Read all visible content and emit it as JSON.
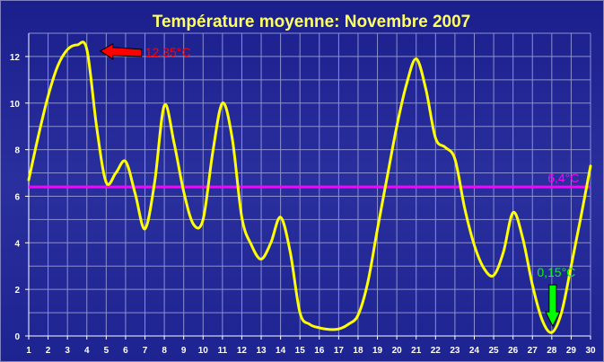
{
  "chart_data": {
    "type": "line",
    "title": "Température moyenne:  Novembre 2007",
    "xlabel": "",
    "ylabel": "",
    "xlim": [
      1,
      30
    ],
    "ylim": [
      0,
      13
    ],
    "x_ticks": [
      "1",
      "2",
      "3",
      "4",
      "5",
      "6",
      "7",
      "8",
      "9",
      "10",
      "11",
      "12",
      "13",
      "14",
      "15",
      "16",
      "17",
      "18",
      "19",
      "20",
      "21",
      "22",
      "23",
      "24",
      "25",
      "26",
      "27",
      "28",
      "29",
      "30"
    ],
    "y_ticks": [
      "0",
      "2",
      "4",
      "6",
      "8",
      "10",
      "12"
    ],
    "grid": true,
    "series": [
      {
        "color": "#ffff00",
        "x": [
          1,
          1.5,
          2,
          2.5,
          3,
          3.5,
          4,
          4.5,
          5,
          5.5,
          6,
          6.5,
          7,
          7.5,
          8,
          8.5,
          9,
          9.5,
          10,
          10.5,
          11,
          11.5,
          12,
          12.5,
          13,
          13.5,
          14,
          14.5,
          15,
          15.5,
          16,
          16.5,
          17,
          17.5,
          18,
          18.5,
          19,
          19.5,
          20,
          20.5,
          21,
          21.5,
          22,
          22.5,
          23,
          23.5,
          24,
          24.5,
          25,
          25.5,
          26,
          26.5,
          27,
          27.5,
          28,
          28.5,
          29,
          29.5,
          30
        ],
        "values": [
          6.7,
          8.6,
          10.3,
          11.6,
          12.3,
          12.5,
          12.3,
          9.0,
          6.6,
          7.0,
          7.5,
          6.1,
          4.6,
          6.6,
          9.9,
          8.3,
          6.2,
          4.8,
          5.0,
          7.9,
          10.0,
          8.5,
          5.1,
          3.9,
          3.3,
          4.0,
          5.1,
          3.6,
          1.0,
          0.5,
          0.35,
          0.28,
          0.3,
          0.5,
          0.9,
          2.3,
          4.6,
          6.8,
          9.0,
          10.8,
          11.9,
          10.6,
          8.5,
          8.1,
          7.6,
          5.5,
          3.9,
          2.9,
          2.6,
          3.6,
          5.3,
          4.2,
          2.2,
          0.7,
          0.15,
          1.0,
          3.0,
          5.1,
          7.3
        ]
      }
    ],
    "reference_line": {
      "value": 6.4,
      "color": "#ff00ff",
      "label": "6,4°C"
    },
    "annotations": [
      {
        "text": "12,35°C",
        "color": "#ff0000",
        "arrow": "left",
        "x": 4,
        "y": 12.35
      },
      {
        "text": "0,15°C",
        "color": "#00ff00",
        "arrow": "down",
        "x": 28,
        "y": 0.15
      }
    ],
    "colors": {
      "background": "#1f2592",
      "grid": "#8b8fd0",
      "axis": "#ffffff"
    }
  }
}
